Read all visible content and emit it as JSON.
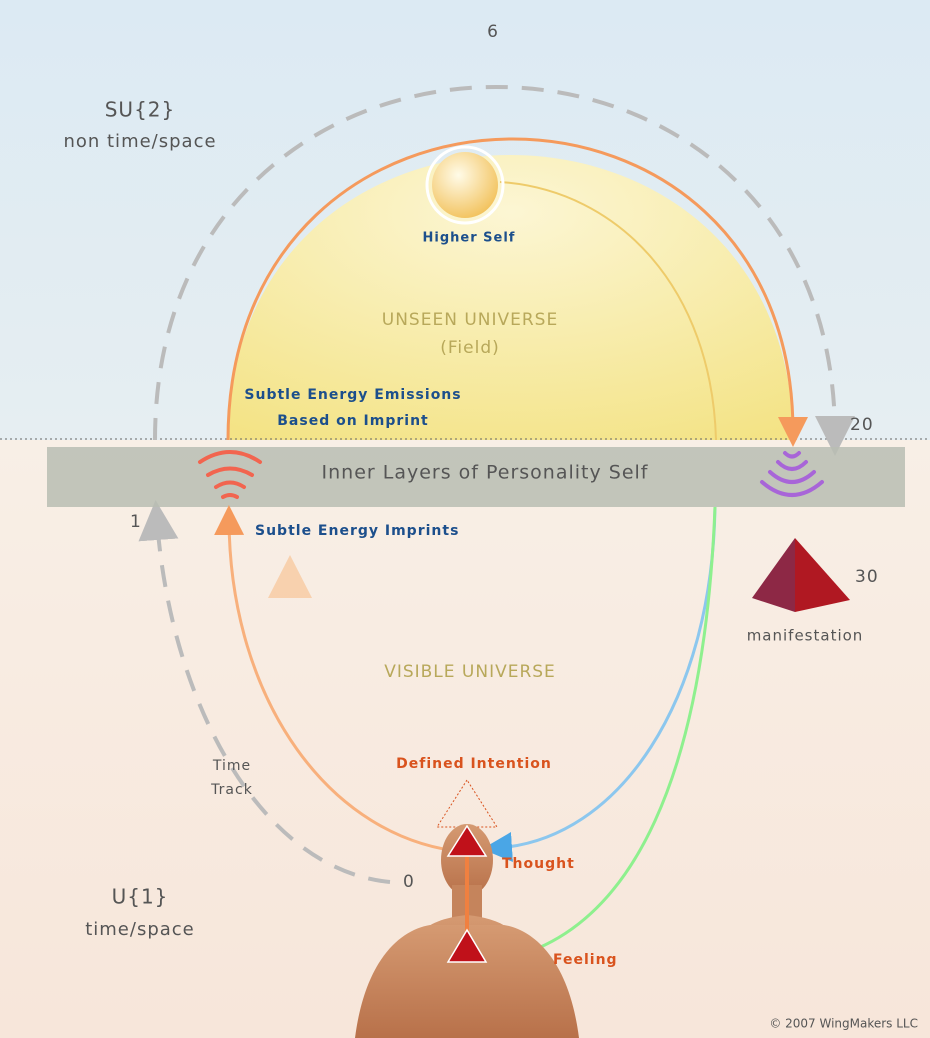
{
  "diagram": {
    "time_track": {
      "marks": {
        "m0": "0",
        "m1": "1",
        "m6": "6",
        "m20": "20",
        "m30": "30"
      },
      "label_line1": "Time",
      "label_line2": "Track"
    },
    "regions": {
      "su2": {
        "title": "SU{2}",
        "subtitle": "non time/space"
      },
      "u1": {
        "title": "U{1}",
        "subtitle": "time/space"
      },
      "unseen": {
        "title": "UNSEEN UNIVERSE",
        "subtitle": "(Field)"
      },
      "visible": "VISIBLE UNIVERSE"
    },
    "nodes": {
      "higher_self": "Higher Self",
      "personality": "Inner Layers of Personality Self",
      "emissions_line1": "Subtle Energy Emissions",
      "emissions_line2": "Based on Imprint",
      "imprints": "Subtle Energy Imprints",
      "manifestation": "manifestation",
      "intention": "Defined Intention",
      "thought": "Thought",
      "feeling": "Feeling"
    },
    "copyright": "© 2007 WingMakers LLC"
  }
}
